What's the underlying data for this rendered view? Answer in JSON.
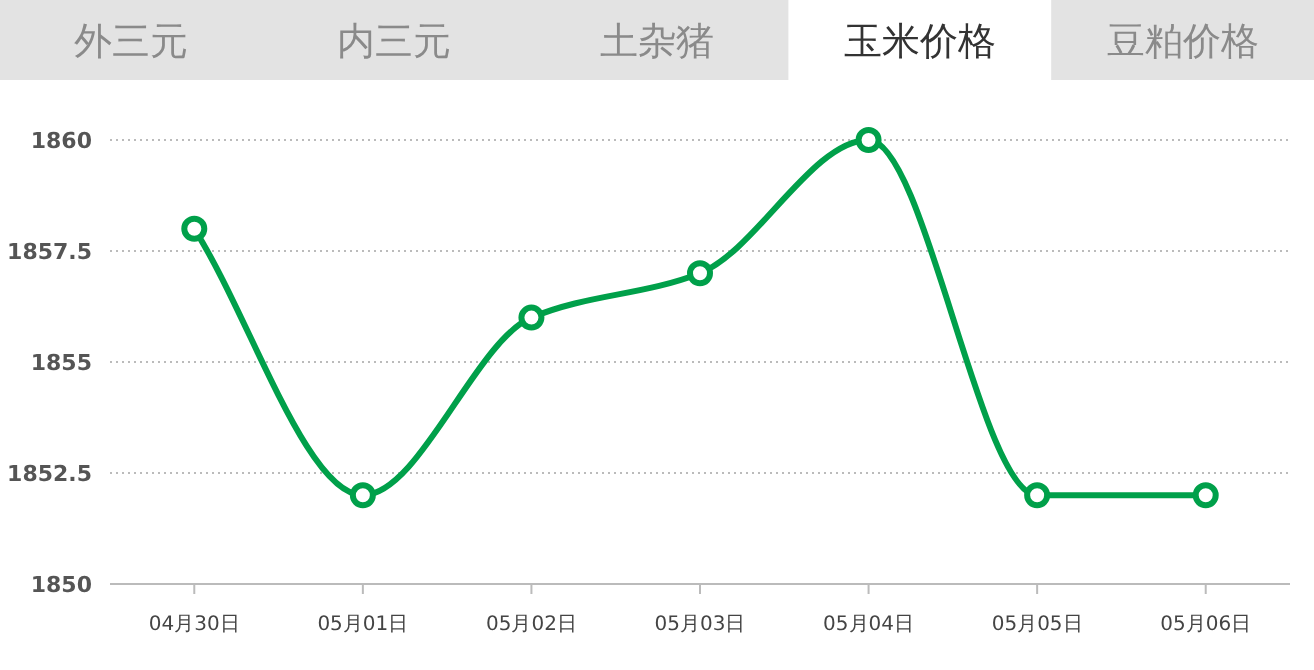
{
  "chart_data": {
    "type": "line",
    "title": "玉米价格",
    "annotations": [
      "外三元",
      "内三元",
      "土杂猪",
      "豆粕价格"
    ],
    "categories": [
      "04月30日",
      "05月01日",
      "05月02日",
      "05月03日",
      "05月04日",
      "05月05日",
      "05月06日"
    ],
    "values": [
      1858,
      1852,
      1856,
      1857,
      1860,
      1852,
      1852
    ],
    "color": "#00a04a",
    "ylim": [
      1850,
      1860
    ],
    "yticks": [
      1850,
      1852.5,
      1855,
      1857.5,
      1860
    ],
    "grid": "y",
    "marker": "circle",
    "line_style": "solid"
  }
}
